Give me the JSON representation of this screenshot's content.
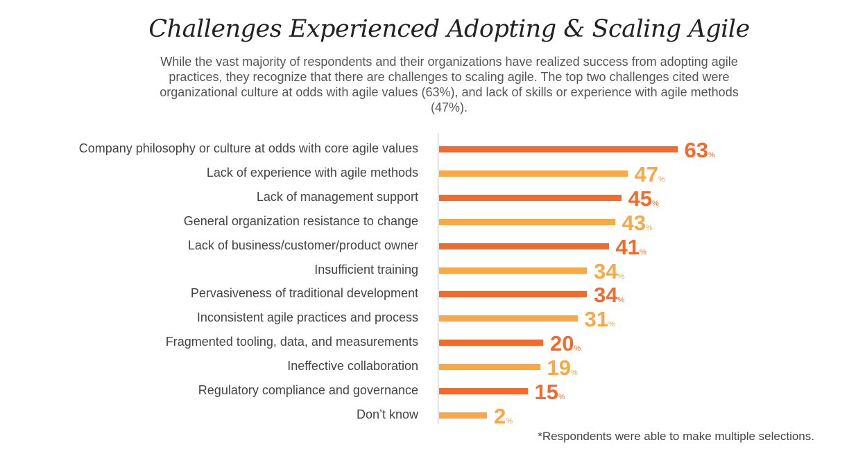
{
  "chart_data": {
    "type": "bar",
    "orientation": "horizontal",
    "title": "Challenges Experienced Adopting & Scaling Agile",
    "subtitle": "While the vast majority of respondents and their organizations have realized success from adopting agile practices, they recognize that there are challenges to scaling agile. The top two challenges cited were organizational culture at odds with agile values (63%), and lack of skills or experience with agile methods (47%).",
    "categories": [
      "Company philosophy or culture at odds with core agile values",
      "Lack of experience with agile methods",
      "Lack of management support",
      "General organization resistance to change",
      "Lack of business/customer/product owner",
      "Insufficient training",
      "Pervasiveness of traditional development",
      "Inconsistent agile practices and process",
      "Fragmented tooling, data, and measurements",
      "Ineffective collaboration",
      "Regulatory compliance and governance",
      "Don’t know"
    ],
    "values": [
      63,
      47,
      45,
      43,
      41,
      34,
      34,
      31,
      20,
      19,
      15,
      2
    ],
    "unit": "%",
    "colors": [
      "#F26A2C",
      "#F9A845"
    ],
    "footnote": "*Respondents were able to make multiple selections."
  }
}
